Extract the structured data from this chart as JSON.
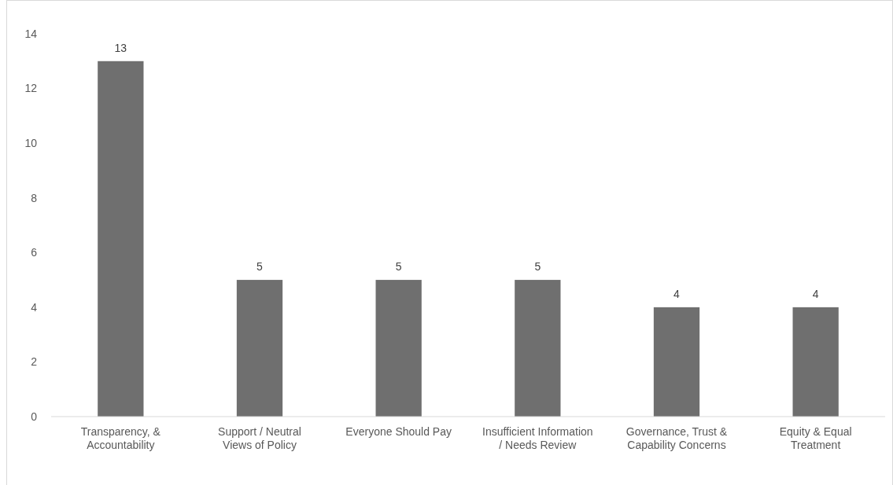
{
  "chart_data": {
    "type": "bar",
    "categories": [
      "Transparency, & Accountability",
      "Support / Neutral Views of Policy",
      "Everyone Should Pay",
      "Insufficient Information / Needs Review",
      "Governance, Trust & Capability Concerns",
      "Equity & Equal Treatment"
    ],
    "values": [
      13,
      5,
      5,
      5,
      4,
      4
    ],
    "color": "#6f6f6f",
    "ylim": [
      0,
      14
    ],
    "yticks": [
      0,
      2,
      4,
      6,
      8,
      10,
      12,
      14
    ],
    "grid": false,
    "data_labels": true
  }
}
